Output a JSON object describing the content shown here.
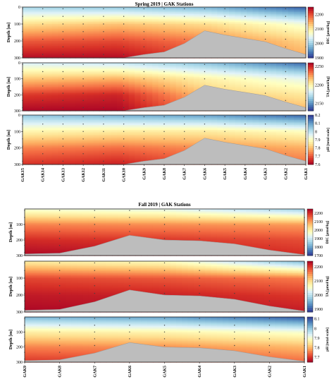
{
  "chart_data": [
    {
      "title": "Spring 2019 | GAK Stations",
      "type": "heatmap",
      "stations": [
        "GAK15",
        "GAK14",
        "GAK13",
        "GAK12",
        "GAK11",
        "GAK10",
        "GAK9",
        "GAK8",
        "GAK7",
        "GAK6",
        "GAK5",
        "GAK4",
        "GAK3",
        "GAK2",
        "GAK1"
      ],
      "bathymetry_depth_m": [
        300,
        300,
        300,
        300,
        300,
        300,
        280,
        265,
        215,
        140,
        165,
        185,
        205,
        245,
        280
      ],
      "panels": [
        {
          "variable": "DIC",
          "cbar_label": "DIC [µmol/kg]",
          "ylabel": "Depth [m]",
          "yticks": [
            0,
            100,
            200,
            300
          ],
          "cticks": [
            2200,
            2100,
            2000,
            1900
          ],
          "range": [
            1900,
            2250
          ],
          "cmap": "RdYlBu_r",
          "profiles": [
            {
              "depth_m": [
                0,
                100,
                200,
                300
              ],
              "values": [
                2000,
                2110,
                2190,
                2240
              ]
            },
            {
              "depth_m": [
                0,
                100,
                200,
                300
              ],
              "values": [
                1990,
                2130,
                2200,
                2240
              ]
            },
            {
              "depth_m": [
                0,
                100,
                200,
                300
              ],
              "values": [
                1970,
                2110,
                2170,
                2200
              ]
            },
            {
              "depth_m": [
                0,
                100,
                200,
                300
              ],
              "values": [
                1920,
                2060,
                2120,
                2150
              ]
            }
          ]
        },
        {
          "variable": "TA",
          "cbar_label": "TA [µmol/kg]",
          "ylabel": "Depth [m]",
          "yticks": [
            0,
            100,
            200,
            300
          ],
          "cticks": [
            2250,
            2200,
            2150
          ],
          "range": [
            2130,
            2260
          ],
          "cmap": "RdYlBu_r",
          "profiles": [
            {
              "depth_m": [
                0,
                100,
                200,
                300
              ],
              "values": [
                2180,
                2215,
                2245,
                2258
              ]
            },
            {
              "depth_m": [
                0,
                100,
                200,
                300
              ],
              "values": [
                2175,
                2220,
                2250,
                2258
              ]
            },
            {
              "depth_m": [
                0,
                100,
                200,
                300
              ],
              "values": [
                2160,
                2200,
                2215,
                2230
              ]
            },
            {
              "depth_m": [
                0,
                100,
                200,
                300
              ],
              "values": [
                2140,
                2185,
                2205,
                2220
              ]
            }
          ]
        },
        {
          "variable": "pH",
          "cbar_label": "pH [total scale]",
          "ylabel": "Depth [m]",
          "yticks": [
            0,
            100,
            200,
            300
          ],
          "cticks": [
            8.2,
            8.1,
            8,
            7.9,
            7.8,
            7.7,
            7.6
          ],
          "range": [
            7.6,
            8.2
          ],
          "cmap": "RdYlBu",
          "profiles": [
            {
              "depth_m": [
                0,
                100,
                200,
                300
              ],
              "values": [
                8.05,
                7.88,
                7.74,
                7.66
              ]
            },
            {
              "depth_m": [
                0,
                100,
                200,
                300
              ],
              "values": [
                8.08,
                7.86,
                7.72,
                7.64
              ]
            },
            {
              "depth_m": [
                0,
                100,
                200,
                300
              ],
              "values": [
                8.1,
                7.86,
                7.75,
                7.7
              ]
            },
            {
              "depth_m": [
                0,
                100,
                200,
                300
              ],
              "values": [
                8.16,
                7.9,
                7.78,
                7.72
              ]
            }
          ]
        }
      ]
    },
    {
      "title": "Fall 2019 | GAK Stations",
      "type": "heatmap",
      "stations": [
        "GAK9",
        "GAK8",
        "GAK7",
        "GAK6",
        "GAK5",
        "GAK4",
        "GAK3",
        "GAK2",
        "GAK1"
      ],
      "bathymetry_depth_m": [
        290,
        285,
        240,
        170,
        200,
        205,
        225,
        265,
        295
      ],
      "panels": [
        {
          "variable": "DIC",
          "cbar_label": "DIC [µmol/kg]",
          "ylabel": "Depth [m]",
          "yticks": [
            100,
            200,
            300
          ],
          "cticks": [
            2200,
            2100,
            2000,
            1900,
            1800,
            1700
          ],
          "range": [
            1700,
            2250
          ],
          "cmap": "RdYlBu_r",
          "profiles": [
            {
              "depth_m": [
                0,
                100,
                200,
                300
              ],
              "values": [
                1950,
                2120,
                2200,
                2240
              ]
            },
            {
              "depth_m": [
                0,
                100,
                200,
                300
              ],
              "values": [
                1930,
                2110,
                2190,
                2230
              ]
            },
            {
              "depth_m": [
                0,
                100,
                200,
                300
              ],
              "values": [
                1850,
                2100,
                2170,
                2200
              ]
            }
          ]
        },
        {
          "variable": "TA",
          "cbar_label": "TA [µmol/kg]",
          "ylabel": "Depth [m]",
          "yticks": [
            100,
            200,
            300
          ],
          "cticks": [
            2200,
            2100,
            2000,
            1900
          ],
          "range": [
            1880,
            2240
          ],
          "cmap": "RdYlBu_r",
          "profiles": [
            {
              "depth_m": [
                0,
                100,
                200,
                300
              ],
              "values": [
                2080,
                2190,
                2220,
                2235
              ]
            },
            {
              "depth_m": [
                0,
                100,
                200,
                300
              ],
              "values": [
                2060,
                2180,
                2215,
                2230
              ]
            },
            {
              "depth_m": [
                0,
                100,
                200,
                300
              ],
              "values": [
                1960,
                2160,
                2200,
                2220
              ]
            }
          ]
        },
        {
          "variable": "pH",
          "cbar_label": "pH [total scale]",
          "ylabel": "Depth [m]",
          "yticks": [
            100,
            200,
            300
          ],
          "cticks": [
            8.1,
            8,
            7.9,
            7.8,
            7.7
          ],
          "range": [
            7.65,
            8.12
          ],
          "cmap": "RdYlBu",
          "profiles": [
            {
              "depth_m": [
                0,
                100,
                200,
                300
              ],
              "values": [
                8.02,
                7.86,
                7.76,
                7.7
              ]
            },
            {
              "depth_m": [
                0,
                100,
                200,
                300
              ],
              "values": [
                8.04,
                7.87,
                7.77,
                7.71
              ]
            },
            {
              "depth_m": [
                0,
                100,
                200,
                300
              ],
              "values": [
                8.1,
                7.9,
                7.8,
                7.74
              ]
            }
          ]
        }
      ]
    }
  ]
}
